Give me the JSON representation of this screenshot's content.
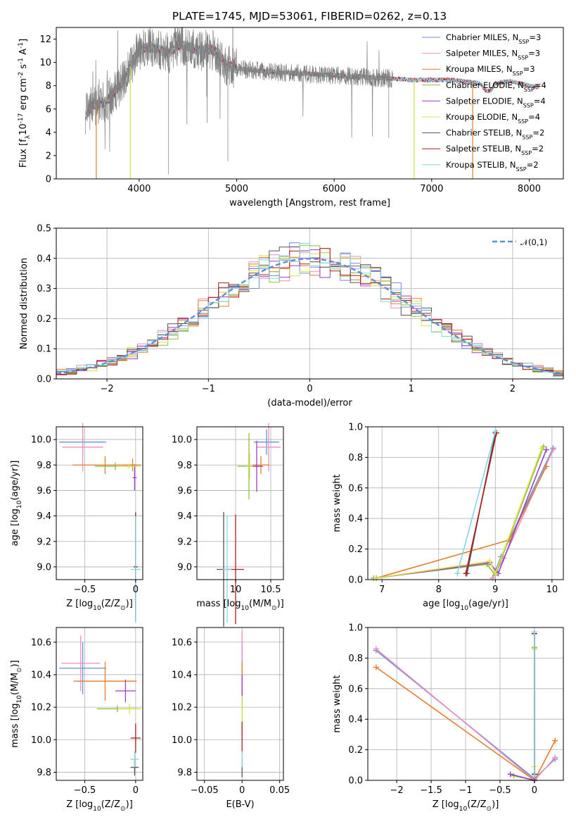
{
  "figure": {
    "title": "PLATE=1745, MJD=53061, FIBERID=0262, z=0.13"
  },
  "styles": [
    {
      "label": "Chabrier MILES, N$_{SSP}$=3",
      "color": "#6a8fd8"
    },
    {
      "label": "Salpeter MILES, N$_{SSP}$=3",
      "color": "#e98fc0"
    },
    {
      "label": "Kroupa MILES, N$_{SSP}$=3",
      "color": "#e37e2a"
    },
    {
      "label": "Chabrier ELODIE, N$_{SSP}$=4",
      "color": "#8fbf3a"
    },
    {
      "label": "Salpeter ELODIE, N$_{SSP}$=4",
      "color": "#9b3fc4"
    },
    {
      "label": "Kroupa ELODIE, N$_{SSP}$=4",
      "color": "#d8e04a"
    },
    {
      "label": "Chabrier STELIB, N$_{SSP}$=2",
      "color": "#555555"
    },
    {
      "label": "Salpeter STELIB, N$_{SSP}$=2",
      "color": "#b01c1c"
    },
    {
      "label": "Kroupa STELIB, N$_{SSP}$=2",
      "color": "#86d6e2"
    }
  ],
  "chart_data": [
    {
      "id": "spectrum",
      "type": "line",
      "xlabel": "wavelength [Angstrom, rest frame]",
      "ylabel": "Flux [f$_\\lambda$10$^{-17}$ erg cm$^{-2}$ s$^{-1}$ A$^{-1}$]",
      "xlim": [
        3150,
        8350
      ],
      "ylim": [
        0,
        13
      ],
      "xticks": [
        4000,
        5000,
        6000,
        7000,
        8000
      ],
      "yticks": [
        0,
        2,
        4,
        6,
        8,
        10,
        12
      ],
      "grid": false,
      "legend_position": "top-right",
      "continuum": {
        "x": [
          3450,
          3520,
          3580,
          3650,
          3720,
          3800,
          3850,
          3900,
          3950,
          4000,
          4100,
          4200,
          4300,
          4400,
          4500,
          4600,
          4700,
          4800,
          4900,
          5000,
          5200,
          5500,
          5800,
          6000,
          6200,
          6400,
          6600,
          6800,
          7000,
          7200,
          7400,
          7600,
          7800,
          8000,
          8100
        ],
        "y": [
          5.5,
          6.3,
          6.4,
          6.6,
          7.2,
          8.0,
          8.6,
          9.5,
          10.3,
          11.1,
          11.3,
          11.1,
          10.8,
          11.5,
          11.4,
          11.0,
          11.2,
          10.9,
          9.7,
          9.5,
          9.3,
          9.1,
          9.0,
          8.9,
          8.8,
          8.7,
          8.6,
          8.5,
          8.5,
          8.5,
          8.3,
          8.1,
          8.4,
          8.0,
          7.9
        ]
      },
      "data_x_range": [
        3450,
        6600
      ],
      "model_x_range": [
        3450,
        8100
      ],
      "dropouts": [
        {
          "x": 3560,
          "color_index": 2
        },
        {
          "x": 3910,
          "color_index": 5
        },
        {
          "x": 6820,
          "color_index": 5
        },
        {
          "x": 7420,
          "color_index": 2
        }
      ]
    },
    {
      "id": "residuals",
      "type": "histogram",
      "xlabel": "(data-model)/error",
      "ylabel": "Normed distribution",
      "xlim": [
        -2.5,
        2.5
      ],
      "ylim": [
        0,
        0.5
      ],
      "xticks": [
        -2,
        -1,
        0,
        1,
        2
      ],
      "yticks": [
        0.0,
        0.1,
        0.2,
        0.3,
        0.4,
        0.5
      ],
      "grid": true,
      "bin_width": 0.1,
      "bin_start": -2.6,
      "reference_curve": {
        "label": "$\\mathcal{N}(0,1)$",
        "color": "#5b8fd6",
        "style": "dashed"
      },
      "legend_position": "top-right"
    },
    {
      "id": "age-vs-Z",
      "type": "errorbar",
      "xlabel": "Z [log$_{10}$($Z/Z_\\odot$)]",
      "ylabel": "age  [log$_{10}$($age/yr$)]",
      "xlim": [
        -0.78,
        0.07
      ],
      "ylim": [
        8.9,
        10.1
      ],
      "xticks": [
        -0.5,
        0.0
      ],
      "yticks": [
        9.0,
        9.2,
        9.4,
        9.6,
        9.8,
        10.0
      ],
      "grid": true,
      "points": [
        {
          "series": 0,
          "x": -0.52,
          "xerr": 0.23,
          "y": 9.98,
          "yerr": 0.1
        },
        {
          "series": 1,
          "x": -0.52,
          "xerr": 0.2,
          "y": 9.94,
          "yerr": 0.19
        },
        {
          "series": 2,
          "x": -0.3,
          "xerr": 0.32,
          "y": 9.8,
          "yerr": 0.07
        },
        {
          "series": 2,
          "x": -0.03,
          "xerr": 0.08,
          "y": 9.8,
          "yerr": 0.05
        },
        {
          "series": 3,
          "x": -0.2,
          "xerr": 0.2,
          "y": 9.79,
          "yerr": 0.03
        },
        {
          "series": 4,
          "x": -0.01,
          "xerr": 0.02,
          "y": 9.7,
          "yerr": 0.1
        },
        {
          "series": 5,
          "x": -0.07,
          "xerr": 0.12,
          "y": 9.79,
          "yerr": 0.02
        },
        {
          "series": 6,
          "x": 0.0,
          "xerr": 0.02,
          "y": 9.0,
          "yerr": 0.43
        },
        {
          "series": 7,
          "x": 0.0,
          "xerr": 0.02,
          "y": 9.0,
          "yerr": 0.42
        },
        {
          "series": 8,
          "x": 0.0,
          "xerr": 0.05,
          "y": 8.98,
          "yerr": 0.42
        }
      ]
    },
    {
      "id": "age-vs-mass",
      "type": "errorbar",
      "xlabel": "mass [log$_{10}$($M/M_\\odot$)]",
      "ylabel": "",
      "xlim": [
        9.45,
        10.68
      ],
      "ylim": [
        8.9,
        10.1
      ],
      "xticks": [
        10.0,
        10.5
      ],
      "yticks": [
        9.0,
        9.2,
        9.4,
        9.6,
        9.8,
        10.0
      ],
      "grid": true,
      "points": [
        {
          "series": 0,
          "x": 10.44,
          "xerr": 0.18,
          "y": 9.98,
          "yerr": 0.1
        },
        {
          "series": 1,
          "x": 10.47,
          "xerr": 0.17,
          "y": 9.94,
          "yerr": 0.19
        },
        {
          "series": 2,
          "x": 10.36,
          "xerr": 0.12,
          "y": 9.8,
          "yerr": 0.07
        },
        {
          "series": 3,
          "x": 10.19,
          "xerr": 0.16,
          "y": 9.79,
          "yerr": 0.26
        },
        {
          "series": 4,
          "x": 10.3,
          "xerr": 0.09,
          "y": 9.79,
          "yerr": 0.2
        },
        {
          "series": 5,
          "x": 10.2,
          "xerr": 0.05,
          "y": 9.79,
          "yerr": 0.1
        },
        {
          "series": 6,
          "x": 9.83,
          "xerr": 0.1,
          "y": 8.98,
          "yerr": 0.45
        },
        {
          "series": 7,
          "x": 10.0,
          "xerr": 0.12,
          "y": 8.98,
          "yerr": 0.43
        },
        {
          "series": 8,
          "x": 9.88,
          "xerr": 0.06,
          "y": 8.98,
          "yerr": 0.42
        }
      ]
    },
    {
      "id": "weight-vs-age",
      "type": "line",
      "xlabel": "age  [log$_{10}$($age/yr$)]",
      "ylabel": "mass weight",
      "xlim": [
        6.75,
        10.2
      ],
      "ylim": [
        0,
        1.0
      ],
      "xticks": [
        7,
        8,
        9,
        10
      ],
      "yticks": [
        0.0,
        0.2,
        0.4,
        0.6,
        0.8,
        1.0
      ],
      "grid": true,
      "series": [
        {
          "series": 0,
          "x": [
            8.95,
            9.1,
            10.02
          ],
          "y": [
            0.01,
            0.15,
            0.86
          ]
        },
        {
          "series": 1,
          "x": [
            8.95,
            9.15,
            10.02
          ],
          "y": [
            0.01,
            0.14,
            0.85
          ]
        },
        {
          "series": 2,
          "x": [
            6.9,
            9.25,
            9.9
          ],
          "y": [
            0.01,
            0.26,
            0.74
          ]
        },
        {
          "series": 3,
          "x": [
            6.85,
            8.85,
            9.0,
            9.85
          ],
          "y": [
            0.01,
            0.1,
            0.03,
            0.87
          ]
        },
        {
          "series": 4,
          "x": [
            6.9,
            8.9,
            9.05,
            9.9
          ],
          "y": [
            0.01,
            0.11,
            0.04,
            0.85
          ]
        },
        {
          "series": 5,
          "x": [
            6.9,
            8.9,
            9.0,
            9.82
          ],
          "y": [
            0.01,
            0.12,
            0.04,
            0.86
          ]
        },
        {
          "series": 6,
          "x": [
            8.5,
            9.0
          ],
          "y": [
            0.04,
            0.96
          ]
        },
        {
          "series": 7,
          "x": [
            8.48,
            9.02
          ],
          "y": [
            0.04,
            0.96
          ]
        },
        {
          "series": 8,
          "x": [
            8.33,
            9.0
          ],
          "y": [
            0.04,
            0.97
          ]
        }
      ]
    },
    {
      "id": "mass-vs-Z",
      "type": "errorbar",
      "xlabel": "Z [log$_{10}$($Z/Z_\\odot$)]",
      "ylabel": "mass [log$_{10}$($M/M_\\odot$)]",
      "xlim": [
        -0.78,
        0.07
      ],
      "ylim": [
        9.75,
        10.69
      ],
      "xticks": [
        -0.5,
        0.0
      ],
      "yticks": [
        9.8,
        10.0,
        10.2,
        10.4,
        10.6
      ],
      "grid": true,
      "points": [
        {
          "series": 0,
          "x": -0.52,
          "xerr": 0.23,
          "y": 10.44,
          "yerr": 0.16
        },
        {
          "series": 1,
          "x": -0.54,
          "xerr": 0.19,
          "y": 10.47,
          "yerr": 0.17
        },
        {
          "series": 2,
          "x": -0.3,
          "xerr": 0.31,
          "y": 10.36,
          "yerr": 0.12
        },
        {
          "series": 3,
          "x": -0.18,
          "xerr": 0.2,
          "y": 10.19,
          "yerr": 0.02
        },
        {
          "series": 4,
          "x": -0.1,
          "xerr": 0.1,
          "y": 10.3,
          "yerr": 0.07
        },
        {
          "series": 5,
          "x": -0.06,
          "xerr": 0.11,
          "y": 10.19,
          "yerr": 0.03
        },
        {
          "series": 6,
          "x": -0.01,
          "xerr": 0.04,
          "y": 9.83,
          "yerr": 0.05
        },
        {
          "series": 7,
          "x": 0.0,
          "xerr": 0.05,
          "y": 10.01,
          "yerr": 0.09
        },
        {
          "series": 8,
          "x": -0.01,
          "xerr": 0.04,
          "y": 9.88,
          "yerr": 0.05
        }
      ]
    },
    {
      "id": "mass-vs-ebv",
      "type": "errorbar",
      "xlabel": "E(B-V)",
      "ylabel": "",
      "xlim": [
        -0.06,
        0.055
      ],
      "ylim": [
        9.75,
        10.69
      ],
      "xticks": [
        -0.05,
        0.0,
        0.05
      ],
      "yticks": [
        9.8,
        10.0,
        10.2,
        10.4,
        10.6
      ],
      "grid": true,
      "points": [
        {
          "series": 0,
          "x": 0,
          "xerr": 0,
          "y": 10.44,
          "yerr": 0.16
        },
        {
          "series": 1,
          "x": 0,
          "xerr": 0,
          "y": 10.47,
          "yerr": 0.2
        },
        {
          "series": 2,
          "x": 0,
          "xerr": 0,
          "y": 10.36,
          "yerr": 0.12
        },
        {
          "series": 3,
          "x": 0,
          "xerr": 0,
          "y": 10.19,
          "yerr": 0.16
        },
        {
          "series": 4,
          "x": 0,
          "xerr": 0,
          "y": 10.3,
          "yerr": 0.1
        },
        {
          "series": 5,
          "x": 0,
          "xerr": 0,
          "y": 10.19,
          "yerr": 0.08
        },
        {
          "series": 6,
          "x": 0,
          "xerr": 0,
          "y": 9.83,
          "yerr": 0.06
        },
        {
          "series": 7,
          "x": 0,
          "xerr": 0,
          "y": 10.01,
          "yerr": 0.1
        },
        {
          "series": 8,
          "x": 0,
          "xerr": 0,
          "y": 9.88,
          "yerr": 0.05
        }
      ]
    },
    {
      "id": "weight-vs-Z",
      "type": "line",
      "xlabel": "Z [log$_{10}$($Z/Z_\\odot$)]",
      "ylabel": "mass weight",
      "xlim": [
        -2.42,
        0.42
      ],
      "ylim": [
        0,
        1.0
      ],
      "xticks": [
        -2.0,
        -1.5,
        -1.0,
        -0.5,
        0.0
      ],
      "yticks": [
        0.0,
        0.2,
        0.4,
        0.6,
        0.8,
        1.0
      ],
      "grid": true,
      "series": [
        {
          "series": 0,
          "x": [
            -2.3,
            0.0,
            0.3
          ],
          "y": [
            0.85,
            0.01,
            0.14
          ]
        },
        {
          "series": 1,
          "x": [
            -2.3,
            0.0,
            0.3
          ],
          "y": [
            0.86,
            0.0,
            0.15
          ]
        },
        {
          "series": 2,
          "x": [
            -2.3,
            0.0,
            0.3
          ],
          "y": [
            0.74,
            0.0,
            0.26
          ]
        },
        {
          "series": 3,
          "x": [
            -0.3,
            0.0,
            0.0
          ],
          "y": [
            0.03,
            0.0,
            0.87
          ]
        },
        {
          "series": 4,
          "x": [
            -0.35,
            0.0,
            0.0
          ],
          "y": [
            0.04,
            0.0,
            0.86
          ]
        },
        {
          "series": 5,
          "x": [
            0.0,
            0.0
          ],
          "y": [
            0.09,
            0.86
          ]
        },
        {
          "series": 6,
          "x": [
            0.0,
            0.0
          ],
          "y": [
            0.04,
            0.96
          ]
        },
        {
          "series": 7,
          "x": [
            0.0,
            0.0
          ],
          "y": [
            0.04,
            0.96
          ]
        },
        {
          "series": 8,
          "x": [
            0.0,
            0.0
          ],
          "y": [
            0.03,
            0.97
          ]
        }
      ]
    }
  ]
}
